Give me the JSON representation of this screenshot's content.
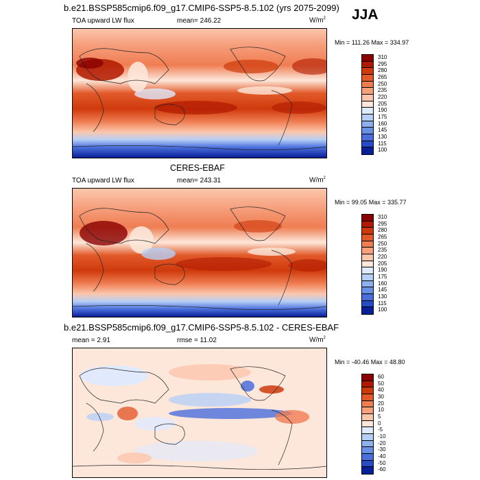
{
  "season": "JJA",
  "panels": [
    {
      "title": "b.e21.BSSP585cmip6.f09_g17.CMIP6-SSP5-8.5.102 (yrs 2075-2099)",
      "variable": "TOA upward LW flux",
      "mean_label": "mean= 246.22",
      "units": "W/m",
      "units_sup": "2",
      "minmax": "Min = 111.26 Max = 334.97",
      "levels": [
        "310",
        "295",
        "280",
        "265",
        "250",
        "235",
        "220",
        "205",
        "190",
        "175",
        "160",
        "145",
        "130",
        "115",
        "100"
      ],
      "colors": [
        "#8a0000",
        "#b01a00",
        "#cf3a0c",
        "#e25a2a",
        "#ef7d52",
        "#f6a07e",
        "#fbc6ac",
        "#fde7da",
        "#deeaff",
        "#b6cff6",
        "#8eb0ef",
        "#6a90e6",
        "#4a6fdc",
        "#2a4bc8",
        "#0a1e96"
      ]
    },
    {
      "title": "CERES-EBAF",
      "variable": "TOA upward LW flux",
      "mean_label": "mean= 243.31",
      "units": "W/m",
      "units_sup": "2",
      "minmax": "Min =  99.05 Max = 335.77",
      "levels": [
        "310",
        "295",
        "280",
        "265",
        "250",
        "235",
        "220",
        "205",
        "190",
        "175",
        "160",
        "145",
        "130",
        "115",
        "100"
      ],
      "colors": [
        "#8a0000",
        "#b01a00",
        "#cf3a0c",
        "#e25a2a",
        "#ef7d52",
        "#f6a07e",
        "#fbc6ac",
        "#fde7da",
        "#deeaff",
        "#b6cff6",
        "#8eb0ef",
        "#6a90e6",
        "#4a6fdc",
        "#2a4bc8",
        "#0a1e96"
      ]
    },
    {
      "title": "b.e21.BSSP585cmip6.f09_g17.CMIP6-SSP5-8.5.102 - CERES-EBAF",
      "variable": "",
      "mean_label": "mean =   2.91",
      "rmse_label": "rmse =  11.02",
      "units": "W/m",
      "units_sup": "2",
      "minmax": "Min = -40.46  Max =  48.80",
      "levels": [
        "60",
        "50",
        "40",
        "30",
        "20",
        "10",
        "5",
        "0",
        "-5",
        "-10",
        "-20",
        "-30",
        "-40",
        "-50",
        "-60"
      ],
      "colors": [
        "#8a0000",
        "#b01a00",
        "#cf3a0c",
        "#e25a2a",
        "#ef7d52",
        "#f6a07e",
        "#fbc6ac",
        "#fde7da",
        "#deeaff",
        "#b6cff6",
        "#8eb0ef",
        "#6a90e6",
        "#4a6fdc",
        "#2a4bc8",
        "#0a1e96"
      ]
    }
  ],
  "chart_data": [
    {
      "type": "heatmap",
      "title": "b.e21.BSSP585cmip6.f09_g17.CMIP6-SSP5-8.5.102 (yrs 2075-2099)",
      "variable": "TOA upward LW flux",
      "units": "W/m2",
      "mean": 246.22,
      "min": 111.26,
      "max": 334.97,
      "contour_levels": [
        100,
        115,
        130,
        145,
        160,
        175,
        190,
        205,
        220,
        235,
        250,
        265,
        280,
        295,
        310
      ]
    },
    {
      "type": "heatmap",
      "title": "CERES-EBAF",
      "variable": "TOA upward LW flux",
      "units": "W/m2",
      "mean": 243.31,
      "min": 99.05,
      "max": 335.77,
      "contour_levels": [
        100,
        115,
        130,
        145,
        160,
        175,
        190,
        205,
        220,
        235,
        250,
        265,
        280,
        295,
        310
      ]
    },
    {
      "type": "heatmap",
      "title": "b.e21.BSSP585cmip6.f09_g17.CMIP6-SSP5-8.5.102 - CERES-EBAF",
      "units": "W/m2",
      "mean": 2.91,
      "rmse": 11.02,
      "min": -40.46,
      "max": 48.8,
      "contour_levels": [
        -60,
        -50,
        -40,
        -30,
        -20,
        -10,
        -5,
        0,
        5,
        10,
        20,
        30,
        40,
        50,
        60
      ]
    }
  ]
}
